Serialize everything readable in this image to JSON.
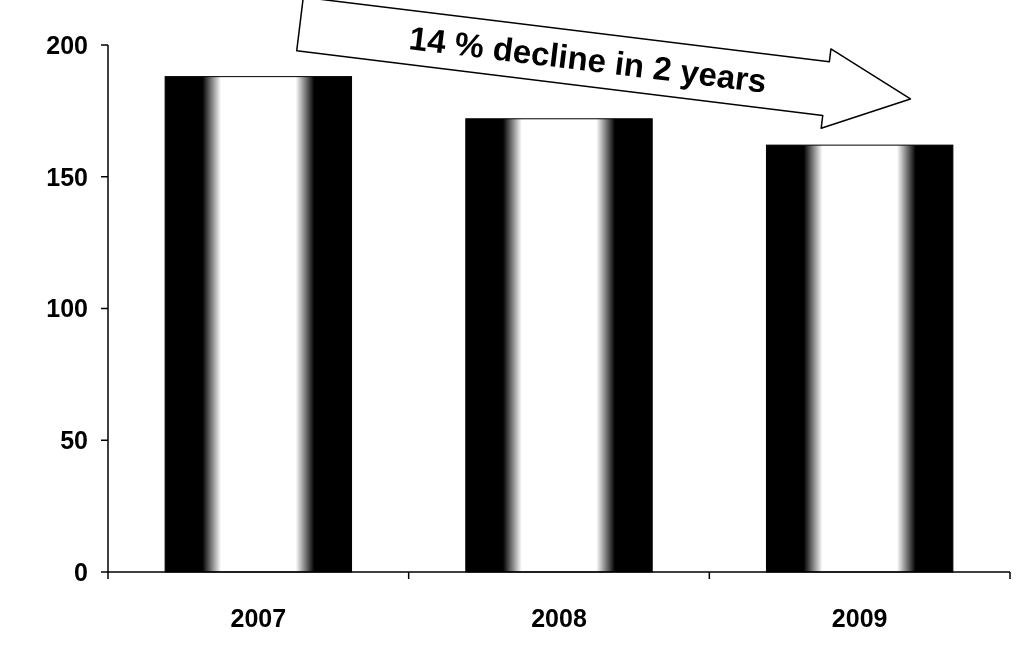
{
  "chart_data": {
    "type": "bar",
    "categories": [
      "2007",
      "2008",
      "2009"
    ],
    "values": [
      188,
      172,
      162
    ],
    "color": "#000000",
    "ylim": [
      0,
      200
    ],
    "yticks": [
      0,
      50,
      100,
      150,
      200
    ],
    "grid": false,
    "annotations": [
      "14 % decline in 2 years"
    ]
  }
}
